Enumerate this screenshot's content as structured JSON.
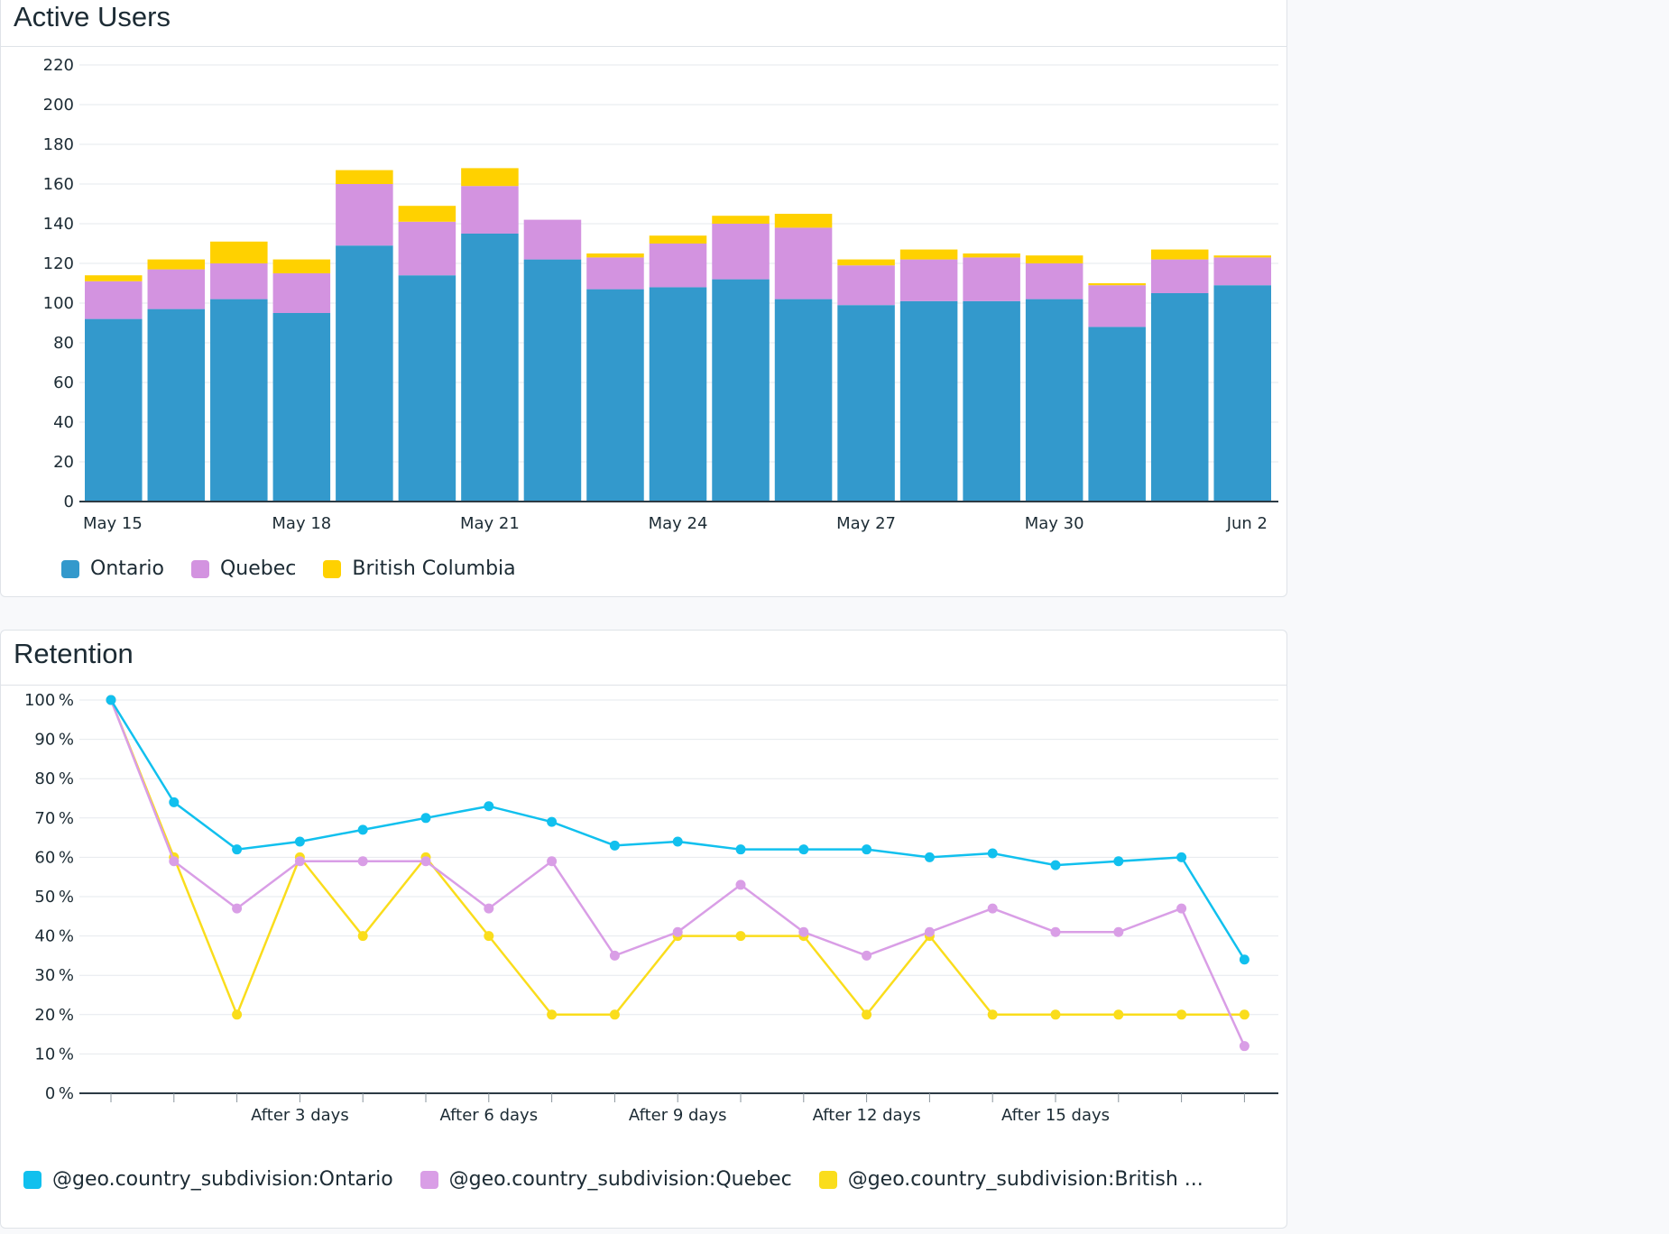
{
  "chart_data": [
    {
      "type": "bar",
      "stacked": true,
      "title": "Active Users",
      "categories": [
        "May 15",
        "May 16",
        "May 17",
        "May 18",
        "May 19",
        "May 20",
        "May 21",
        "May 22",
        "May 23",
        "May 24",
        "May 25",
        "May 26",
        "May 27",
        "May 28",
        "May 29",
        "May 30",
        "May 31",
        "Jun 1",
        "Jun 2"
      ],
      "x_tick_labels": [
        "May 15",
        "May 18",
        "May 21",
        "May 24",
        "May 27",
        "May 30",
        "Jun 2"
      ],
      "x_tick_indices": [
        0,
        3,
        6,
        9,
        12,
        15,
        18
      ],
      "series": [
        {
          "name": "Ontario",
          "color": "#3399cc",
          "values": [
            92,
            97,
            102,
            95,
            129,
            114,
            135,
            122,
            107,
            108,
            112,
            102,
            99,
            101,
            101,
            102,
            88,
            105,
            109
          ]
        },
        {
          "name": "Quebec",
          "color": "#d393e0",
          "values": [
            19,
            20,
            18,
            20,
            31,
            27,
            24,
            20,
            16,
            22,
            28,
            36,
            20,
            21,
            22,
            18,
            21,
            17,
            14
          ]
        },
        {
          "name": "British Columbia",
          "color": "#ffd100",
          "values": [
            3,
            5,
            11,
            7,
            7,
            8,
            9,
            0,
            2,
            4,
            4,
            7,
            3,
            5,
            2,
            4,
            1,
            5,
            1
          ]
        }
      ],
      "ylim": [
        0,
        220
      ],
      "y_ticks": [
        0,
        20,
        40,
        60,
        80,
        100,
        120,
        140,
        160,
        180,
        200,
        220
      ],
      "grid": true,
      "legend": "bottom-left"
    },
    {
      "type": "line",
      "title": "Retention",
      "x": [
        0,
        1,
        2,
        3,
        4,
        5,
        6,
        7,
        8,
        9,
        10,
        11,
        12,
        13,
        14,
        15,
        16,
        17,
        18
      ],
      "x_tick_labels": [
        "After 3 days",
        "After 6 days",
        "After 9 days",
        "After 12 days",
        "After 15 days"
      ],
      "x_tick_indices": [
        3,
        6,
        9,
        12,
        15
      ],
      "series": [
        {
          "name": "@geo.country_subdivision:Ontario",
          "color": "#11c0ee",
          "values": [
            100,
            74,
            62,
            64,
            67,
            70,
            73,
            69,
            63,
            64,
            62,
            62,
            62,
            60,
            61,
            58,
            59,
            60,
            34
          ]
        },
        {
          "name": "@geo.country_subdivision:Quebec",
          "color": "#d99ee6",
          "values": [
            100,
            59,
            47,
            59,
            59,
            59,
            47,
            59,
            35,
            41,
            53,
            41,
            35,
            41,
            47,
            41,
            41,
            47,
            12
          ]
        },
        {
          "name": "@geo.country_subdivision:British ...",
          "color": "#fadd1c",
          "values": [
            100,
            60,
            20,
            60,
            40,
            60,
            40,
            20,
            20,
            40,
            40,
            40,
            20,
            40,
            20,
            20,
            20,
            20,
            20
          ]
        }
      ],
      "ylim": [
        0,
        100
      ],
      "y_ticks": [
        0,
        10,
        20,
        30,
        40,
        50,
        60,
        70,
        80,
        90,
        100
      ],
      "y_unit": "%",
      "grid": true,
      "legend": "bottom-left"
    }
  ]
}
